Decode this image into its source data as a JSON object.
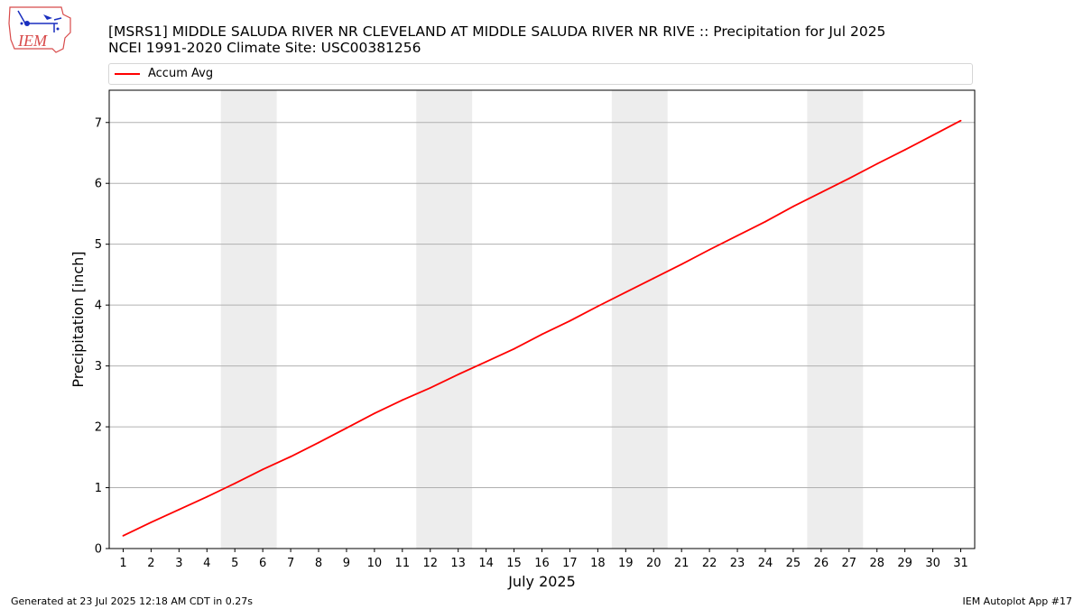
{
  "header": {
    "title_line1": "[MSRS1] MIDDLE SALUDA RIVER NR CLEVELAND  AT MIDDLE SALUDA RIVER NR RIVE :: Precipitation for Jul 2025",
    "title_line2": "NCEI 1991-2020 Climate Site: USC00381256",
    "logo_text": "IEM"
  },
  "legend": {
    "label": "Accum Avg",
    "color": "#ff0000"
  },
  "footer": {
    "left": "Generated at 23 Jul 2025 12:18 AM CDT in 0.27s",
    "right": "IEM Autoplot App #17"
  },
  "chart_data": {
    "type": "line",
    "title": "[MSRS1] MIDDLE SALUDA RIVER NR CLEVELAND  AT MIDDLE SALUDA RIVER NR RIVE :: Precipitation for Jul 2025",
    "subtitle": "NCEI 1991-2020 Climate Site: USC00381256",
    "xlabel": "July 2025",
    "ylabel": "Precipitation [inch]",
    "xlim": [
      0.5,
      31.5
    ],
    "ylim": [
      0,
      7.53
    ],
    "yticks": [
      0,
      1,
      2,
      3,
      4,
      5,
      6,
      7
    ],
    "xticks": [
      1,
      2,
      3,
      4,
      5,
      6,
      7,
      8,
      9,
      10,
      11,
      12,
      13,
      14,
      15,
      16,
      17,
      18,
      19,
      20,
      21,
      22,
      23,
      24,
      25,
      26,
      27,
      28,
      29,
      30,
      31
    ],
    "grid": "y",
    "legend_position": "top",
    "weekend_shading": [
      [
        4.5,
        6.5
      ],
      [
        11.5,
        13.5
      ],
      [
        18.5,
        20.5
      ],
      [
        25.5,
        27.5
      ]
    ],
    "series": [
      {
        "name": "Accum Avg",
        "color": "#ff0000",
        "x": [
          1,
          2,
          3,
          4,
          5,
          6,
          7,
          8,
          9,
          10,
          11,
          12,
          13,
          14,
          15,
          16,
          17,
          18,
          19,
          20,
          21,
          22,
          23,
          24,
          25,
          26,
          27,
          28,
          29,
          30,
          31
        ],
        "values": [
          0.21,
          0.43,
          0.64,
          0.85,
          1.07,
          1.3,
          1.51,
          1.74,
          1.98,
          2.22,
          2.44,
          2.64,
          2.86,
          3.07,
          3.28,
          3.52,
          3.74,
          3.98,
          4.21,
          4.44,
          4.67,
          4.91,
          5.14,
          5.37,
          5.62,
          5.85,
          6.08,
          6.32,
          6.55,
          6.79,
          7.03
        ]
      }
    ]
  }
}
